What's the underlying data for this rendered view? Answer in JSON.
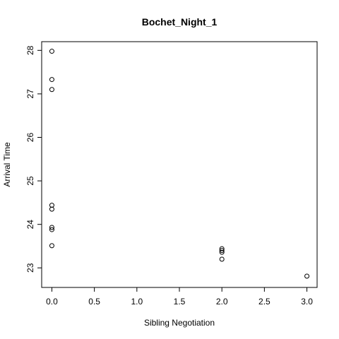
{
  "chart_data": {
    "type": "scatter",
    "title": "Bochet_Night_1",
    "xlabel": "Sibling Negotiation",
    "ylabel": "Arrival Time",
    "xlim": [
      -0.12,
      3.12
    ],
    "ylim": [
      22.55,
      28.2
    ],
    "x_ticks": [
      0.0,
      0.5,
      1.0,
      1.5,
      2.0,
      2.5,
      3.0
    ],
    "x_tick_labels": [
      "0.0",
      "0.5",
      "1.0",
      "1.5",
      "2.0",
      "2.5",
      "3.0"
    ],
    "y_ticks": [
      23,
      24,
      25,
      26,
      27,
      28
    ],
    "y_tick_labels": [
      "23",
      "24",
      "25",
      "26",
      "27",
      "28"
    ],
    "grid": false,
    "marker": "open-circle",
    "colors": {
      "points": "#000000",
      "axes": "#000000",
      "background": "#ffffff"
    },
    "points": [
      {
        "x": 0.0,
        "y": 27.98
      },
      {
        "x": 0.0,
        "y": 27.33
      },
      {
        "x": 0.0,
        "y": 27.1
      },
      {
        "x": 0.0,
        "y": 24.44
      },
      {
        "x": 0.0,
        "y": 24.35
      },
      {
        "x": 0.0,
        "y": 23.93
      },
      {
        "x": 0.0,
        "y": 23.88
      },
      {
        "x": 0.0,
        "y": 23.51
      },
      {
        "x": 2.0,
        "y": 23.44
      },
      {
        "x": 2.0,
        "y": 23.4
      },
      {
        "x": 2.0,
        "y": 23.36
      },
      {
        "x": 2.0,
        "y": 23.2
      },
      {
        "x": 3.0,
        "y": 22.81
      }
    ]
  }
}
